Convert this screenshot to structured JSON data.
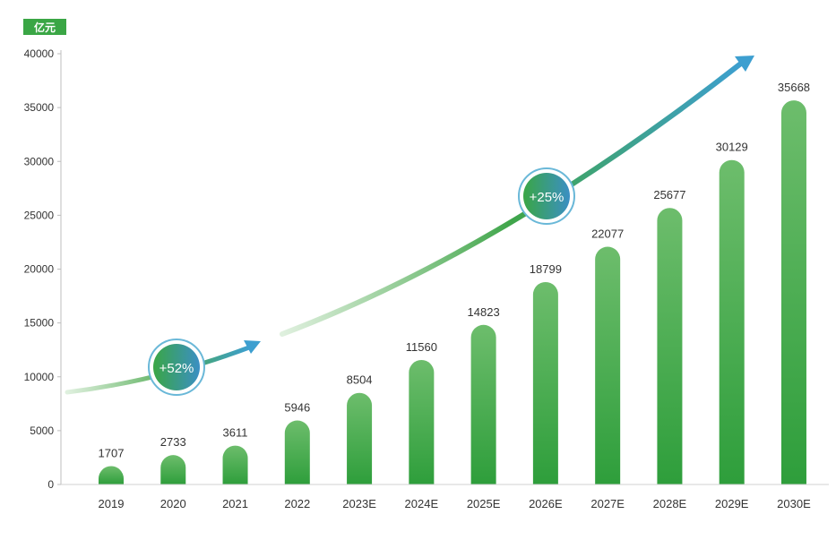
{
  "chart_data": {
    "type": "bar",
    "unit": "亿元",
    "categories": [
      "2019",
      "2020",
      "2021",
      "2022",
      "2023E",
      "2024E",
      "2025E",
      "2026E",
      "2027E",
      "2028E",
      "2029E",
      "2030E"
    ],
    "values": [
      1707,
      2733,
      3611,
      5946,
      8504,
      11560,
      14823,
      18799,
      22077,
      25677,
      30129,
      35668
    ],
    "ylim": [
      0,
      40000
    ],
    "yticks": [
      0,
      5000,
      10000,
      15000,
      20000,
      25000,
      30000,
      35000,
      40000
    ],
    "annotations": [
      {
        "label": "+52%",
        "span": [
          "2019",
          "2021"
        ]
      },
      {
        "label": "+25%",
        "span": [
          "2022",
          "2030E"
        ]
      }
    ],
    "grid": false,
    "bar_color": "#3aa645",
    "arrow_color": "#3d9fd0"
  }
}
